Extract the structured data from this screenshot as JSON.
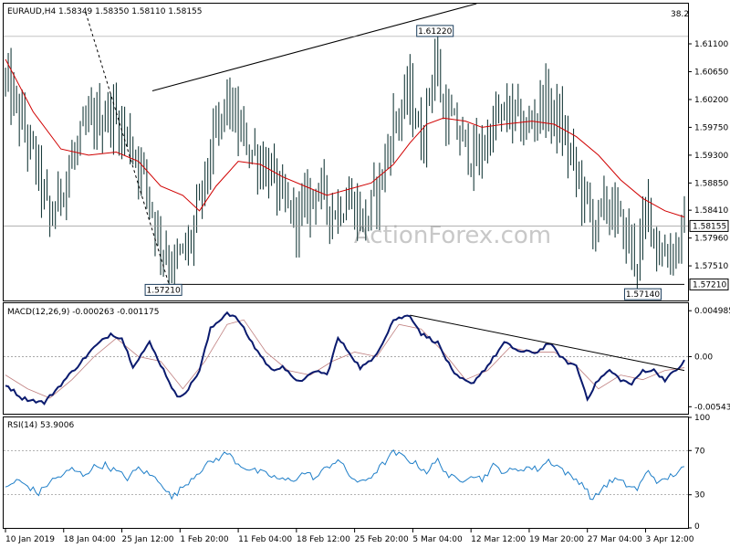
{
  "chart_data": [
    {
      "type": "ohlc",
      "header": "EURAUD,H4  1.58349 1.58350 1.58110 1.58155",
      "watermark": "ActionForex.com",
      "y_ticks": [
        "1.61100",
        "1.60650",
        "1.60200",
        "1.59750",
        "1.59300",
        "1.58850",
        "1.58410",
        "1.57960",
        "1.57510"
      ],
      "y_tick_values": [
        1.611,
        1.6065,
        1.602,
        1.5975,
        1.593,
        1.5885,
        1.5841,
        1.5796,
        1.5751
      ],
      "ylim": [
        1.5695,
        1.6175
      ],
      "current_price": 1.58155,
      "current_label": "1.58155",
      "support_price": 1.5721,
      "support_label": "1.57210",
      "fib_label": "38.2",
      "annotations": [
        {
          "text": "1.61220",
          "price": 1.6122,
          "bar": 155
        },
        {
          "text": "1.57210",
          "price": 1.5721,
          "bar": 57
        },
        {
          "text": "1.57140",
          "price": 1.5714,
          "bar": 230
        }
      ],
      "x_ticks": [
        "10 Jan 2019",
        "18 Jan 04:00",
        "25 Jan 12:00",
        "1 Feb 20:00",
        "11 Feb 04:00",
        "18 Feb 12:00",
        "25 Feb 20:00",
        "5 Mar 04:00",
        "12 Mar 12:00",
        "19 Mar 20:00",
        "27 Mar 04:00",
        "3 Apr 12:00"
      ],
      "x_tick_bars": [
        0,
        21,
        42,
        63,
        84,
        105,
        126,
        147,
        168,
        189,
        210,
        231
      ],
      "bar_count": 246,
      "price_path": [
        [
          0,
          1.605
        ],
        [
          6,
          1.598
        ],
        [
          12,
          1.59
        ],
        [
          16,
          1.582
        ],
        [
          22,
          1.59
        ],
        [
          30,
          1.598
        ],
        [
          38,
          1.6
        ],
        [
          44,
          1.596
        ],
        [
          50,
          1.59
        ],
        [
          55,
          1.58
        ],
        [
          60,
          1.575
        ],
        [
          66,
          1.578
        ],
        [
          70,
          1.585
        ],
        [
          74,
          1.593
        ],
        [
          80,
          1.602
        ],
        [
          84,
          1.597
        ],
        [
          90,
          1.593
        ],
        [
          96,
          1.59
        ],
        [
          100,
          1.585
        ],
        [
          106,
          1.583
        ],
        [
          112,
          1.588
        ],
        [
          118,
          1.584
        ],
        [
          124,
          1.586
        ],
        [
          130,
          1.582
        ],
        [
          136,
          1.59
        ],
        [
          140,
          1.598
        ],
        [
          146,
          1.603
        ],
        [
          150,
          1.595
        ],
        [
          155,
          1.609
        ],
        [
          158,
          1.6
        ],
        [
          164,
          1.596
        ],
        [
          170,
          1.592
        ],
        [
          176,
          1.598
        ],
        [
          182,
          1.6
        ],
        [
          188,
          1.597
        ],
        [
          194,
          1.602
        ],
        [
          200,
          1.598
        ],
        [
          206,
          1.59
        ],
        [
          212,
          1.582
        ],
        [
          218,
          1.585
        ],
        [
          224,
          1.58
        ],
        [
          228,
          1.576
        ],
        [
          232,
          1.585
        ],
        [
          236,
          1.577
        ],
        [
          242,
          1.578
        ],
        [
          245,
          1.5816
        ]
      ],
      "ma_path": [
        [
          0,
          1.6085
        ],
        [
          10,
          1.6
        ],
        [
          20,
          1.594
        ],
        [
          30,
          1.593
        ],
        [
          40,
          1.5935
        ],
        [
          48,
          1.592
        ],
        [
          56,
          1.588
        ],
        [
          64,
          1.5865
        ],
        [
          70,
          1.584
        ],
        [
          76,
          1.588
        ],
        [
          84,
          1.592
        ],
        [
          92,
          1.5915
        ],
        [
          100,
          1.5895
        ],
        [
          108,
          1.588
        ],
        [
          116,
          1.5865
        ],
        [
          124,
          1.5875
        ],
        [
          132,
          1.5885
        ],
        [
          140,
          1.5915
        ],
        [
          146,
          1.595
        ],
        [
          152,
          1.598
        ],
        [
          158,
          1.599
        ],
        [
          166,
          1.5985
        ],
        [
          172,
          1.5975
        ],
        [
          180,
          1.598
        ],
        [
          190,
          1.5985
        ],
        [
          198,
          1.598
        ],
        [
          206,
          1.596
        ],
        [
          214,
          1.593
        ],
        [
          222,
          1.589
        ],
        [
          230,
          1.586
        ],
        [
          238,
          1.584
        ],
        [
          245,
          1.583
        ]
      ],
      "trendlines": [
        {
          "from": [
            53,
            1.6034
          ],
          "to": [
            170,
            1.6175
          ]
        },
        {
          "from": [
            29,
            1.616
          ],
          "to": [
            59,
            1.5721
          ]
        },
        {
          "from": [
            57,
            1.5721
          ],
          "to": [
            245,
            1.5721
          ]
        }
      ]
    },
    {
      "type": "line",
      "title": "MACD(12,26,9) -0.000263 -0.001175",
      "y_ticks": [
        "0.004985",
        "0.00",
        "-0.005439"
      ],
      "y_tick_values": [
        0.004985,
        0.0,
        -0.005439
      ],
      "ylim": [
        -0.0062,
        0.0058
      ],
      "zero_label": "0.00",
      "main_path": [
        [
          0,
          -0.003
        ],
        [
          6,
          -0.0045
        ],
        [
          14,
          -0.005
        ],
        [
          20,
          -0.003
        ],
        [
          26,
          -0.001
        ],
        [
          32,
          0.001
        ],
        [
          38,
          0.0025
        ],
        [
          42,
          0.002
        ],
        [
          46,
          -0.001
        ],
        [
          52,
          0.0015
        ],
        [
          58,
          -0.002
        ],
        [
          62,
          -0.0045
        ],
        [
          66,
          -0.0035
        ],
        [
          70,
          -0.0015
        ],
        [
          74,
          0.003
        ],
        [
          80,
          0.0048
        ],
        [
          84,
          0.004
        ],
        [
          90,
          0.001
        ],
        [
          96,
          -0.0015
        ],
        [
          100,
          -0.001
        ],
        [
          104,
          -0.0025
        ],
        [
          108,
          -0.0025
        ],
        [
          112,
          -0.0015
        ],
        [
          116,
          -0.002
        ],
        [
          120,
          0.002
        ],
        [
          124,
          0.0005
        ],
        [
          128,
          -0.0012
        ],
        [
          132,
          -0.0005
        ],
        [
          136,
          0.0015
        ],
        [
          140,
          0.004
        ],
        [
          146,
          0.0045
        ],
        [
          150,
          0.0025
        ],
        [
          156,
          0.0015
        ],
        [
          162,
          -0.002
        ],
        [
          168,
          -0.003
        ],
        [
          174,
          -0.001
        ],
        [
          180,
          0.0015
        ],
        [
          186,
          0.0005
        ],
        [
          192,
          0.0005
        ],
        [
          196,
          0.0015
        ],
        [
          202,
          -0.0005
        ],
        [
          206,
          -0.001
        ],
        [
          210,
          -0.0045
        ],
        [
          214,
          -0.0025
        ],
        [
          218,
          -0.0015
        ],
        [
          222,
          -0.0025
        ],
        [
          226,
          -0.003
        ],
        [
          230,
          -0.0015
        ],
        [
          234,
          -0.0015
        ],
        [
          238,
          -0.0025
        ],
        [
          242,
          -0.0015
        ],
        [
          245,
          -0.0005
        ]
      ],
      "signal_path": [
        [
          0,
          -0.002
        ],
        [
          8,
          -0.0035
        ],
        [
          16,
          -0.0045
        ],
        [
          24,
          -0.0025
        ],
        [
          32,
          0.0
        ],
        [
          40,
          0.002
        ],
        [
          48,
          0.0
        ],
        [
          56,
          -0.0005
        ],
        [
          64,
          -0.0035
        ],
        [
          72,
          -0.0005
        ],
        [
          80,
          0.0035
        ],
        [
          86,
          0.004
        ],
        [
          94,
          0.0005
        ],
        [
          102,
          -0.0015
        ],
        [
          110,
          -0.002
        ],
        [
          118,
          -0.0005
        ],
        [
          126,
          0.0005
        ],
        [
          134,
          0.0
        ],
        [
          142,
          0.0035
        ],
        [
          150,
          0.003
        ],
        [
          158,
          0.0005
        ],
        [
          166,
          -0.0025
        ],
        [
          174,
          -0.0015
        ],
        [
          182,
          0.001
        ],
        [
          190,
          0.0005
        ],
        [
          198,
          0.0005
        ],
        [
          206,
          -0.001
        ],
        [
          214,
          -0.0035
        ],
        [
          222,
          -0.002
        ],
        [
          230,
          -0.0025
        ],
        [
          238,
          -0.0015
        ],
        [
          245,
          -0.0012
        ]
      ],
      "trendline": {
        "from": [
          146,
          0.0045
        ],
        "to": [
          245,
          -0.0015
        ]
      }
    },
    {
      "type": "line",
      "title": "RSI(14) 53.9006",
      "y_ticks": [
        "100",
        "70",
        "30",
        "0"
      ],
      "y_tick_values": [
        100,
        70,
        30,
        0
      ],
      "ylim": [
        0,
        100
      ],
      "levels": [
        70,
        30
      ],
      "rsi_path": [
        [
          0,
          36
        ],
        [
          4,
          43
        ],
        [
          8,
          38
        ],
        [
          12,
          31
        ],
        [
          16,
          42
        ],
        [
          20,
          47
        ],
        [
          24,
          53
        ],
        [
          28,
          48
        ],
        [
          32,
          55
        ],
        [
          36,
          57
        ],
        [
          40,
          51
        ],
        [
          44,
          45
        ],
        [
          48,
          54
        ],
        [
          52,
          48
        ],
        [
          56,
          42
        ],
        [
          60,
          27
        ],
        [
          64,
          37
        ],
        [
          68,
          47
        ],
        [
          72,
          56
        ],
        [
          76,
          62
        ],
        [
          80,
          68
        ],
        [
          84,
          58
        ],
        [
          88,
          53
        ],
        [
          92,
          50
        ],
        [
          96,
          47
        ],
        [
          100,
          43
        ],
        [
          104,
          44
        ],
        [
          108,
          50
        ],
        [
          112,
          45
        ],
        [
          116,
          55
        ],
        [
          120,
          62
        ],
        [
          124,
          48
        ],
        [
          128,
          40
        ],
        [
          132,
          47
        ],
        [
          136,
          57
        ],
        [
          140,
          68
        ],
        [
          144,
          64
        ],
        [
          148,
          58
        ],
        [
          152,
          51
        ],
        [
          156,
          61
        ],
        [
          160,
          47
        ],
        [
          164,
          42
        ],
        [
          168,
          49
        ],
        [
          172,
          44
        ],
        [
          176,
          56
        ],
        [
          180,
          51
        ],
        [
          184,
          52
        ],
        [
          188,
          55
        ],
        [
          192,
          53
        ],
        [
          196,
          61
        ],
        [
          200,
          55
        ],
        [
          204,
          46
        ],
        [
          208,
          41
        ],
        [
          212,
          25
        ],
        [
          216,
          38
        ],
        [
          220,
          44
        ],
        [
          224,
          39
        ],
        [
          228,
          35
        ],
        [
          232,
          52
        ],
        [
          236,
          40
        ],
        [
          240,
          47
        ],
        [
          245,
          53.9
        ]
      ]
    }
  ]
}
